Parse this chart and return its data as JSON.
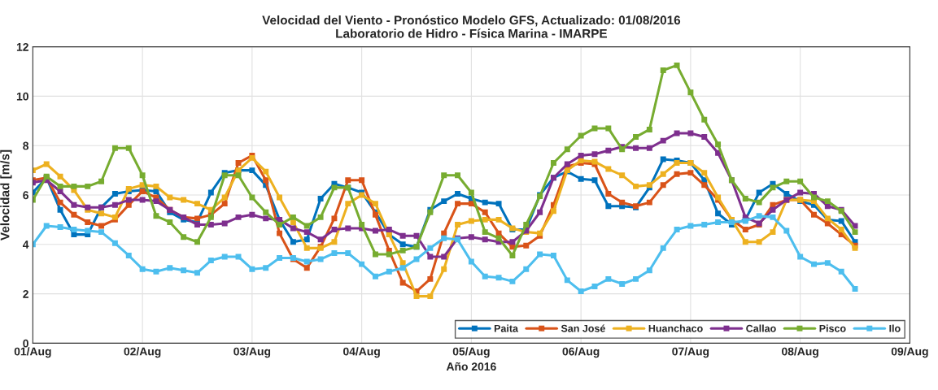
{
  "chart_data": {
    "type": "line",
    "title": "Velocidad del Viento - Pronóstico Modelo GFS, Actualizado: 01/08/2016",
    "subtitle": "Laboratorio de Hidro - Física Marina - IMARPE",
    "xlabel": "Año 2016",
    "ylabel": "Velocidad [m/s]",
    "x": [
      "2016-08-01T00:00",
      "2016-08-01T03:00",
      "2016-08-01T06:00",
      "2016-08-01T09:00",
      "2016-08-01T12:00",
      "2016-08-01T15:00",
      "2016-08-01T18:00",
      "2016-08-01T21:00",
      "2016-08-02T00:00",
      "2016-08-02T03:00",
      "2016-08-02T06:00",
      "2016-08-02T09:00",
      "2016-08-02T12:00",
      "2016-08-02T15:00",
      "2016-08-02T18:00",
      "2016-08-02T21:00",
      "2016-08-03T00:00",
      "2016-08-03T03:00",
      "2016-08-03T06:00",
      "2016-08-03T09:00",
      "2016-08-03T12:00",
      "2016-08-03T15:00",
      "2016-08-03T18:00",
      "2016-08-03T21:00",
      "2016-08-04T00:00",
      "2016-08-04T03:00",
      "2016-08-04T06:00",
      "2016-08-04T09:00",
      "2016-08-04T12:00",
      "2016-08-04T15:00",
      "2016-08-04T18:00",
      "2016-08-04T21:00",
      "2016-08-05T00:00",
      "2016-08-05T03:00",
      "2016-08-05T06:00",
      "2016-08-05T09:00",
      "2016-08-05T12:00",
      "2016-08-05T15:00",
      "2016-08-05T18:00",
      "2016-08-05T21:00",
      "2016-08-06T00:00",
      "2016-08-06T03:00",
      "2016-08-06T06:00",
      "2016-08-06T09:00",
      "2016-08-06T12:00",
      "2016-08-06T15:00",
      "2016-08-06T18:00",
      "2016-08-06T21:00",
      "2016-08-07T00:00",
      "2016-08-07T03:00",
      "2016-08-07T06:00",
      "2016-08-07T09:00",
      "2016-08-07T12:00",
      "2016-08-07T15:00",
      "2016-08-07T18:00",
      "2016-08-07T21:00",
      "2016-08-08T00:00",
      "2016-08-08T03:00",
      "2016-08-08T06:00",
      "2016-08-08T09:00",
      "2016-08-08T12:00"
    ],
    "series": [
      {
        "name": "Paita",
        "color": "#0072bd",
        "values": [
          6.1,
          6.7,
          5.4,
          4.4,
          4.4,
          5.5,
          6.05,
          6.15,
          6.2,
          6.15,
          5.3,
          5.0,
          4.9,
          6.1,
          6.9,
          7.0,
          7.0,
          6.4,
          5.0,
          4.1,
          4.2,
          5.85,
          6.45,
          6.3,
          6.1,
          5.3,
          4.4,
          4.0,
          3.9,
          5.4,
          5.75,
          6.05,
          5.85,
          5.7,
          5.65,
          4.6,
          4.6,
          6.0,
          6.7,
          6.95,
          6.65,
          6.6,
          5.55,
          5.55,
          5.5,
          6.3,
          7.45,
          7.4,
          7.3,
          6.6,
          5.25,
          4.8,
          5.0,
          6.1,
          6.45,
          6.05,
          5.75,
          5.6,
          5.0,
          4.95,
          4.1
        ]
      },
      {
        "name": "San José",
        "color": "#d95319",
        "values": [
          6.6,
          6.7,
          5.7,
          5.2,
          4.9,
          4.75,
          5.0,
          5.6,
          6.15,
          5.9,
          5.4,
          5.1,
          5.05,
          5.2,
          5.65,
          7.3,
          7.6,
          6.6,
          4.45,
          3.4,
          3.05,
          3.9,
          5.05,
          6.6,
          6.6,
          5.2,
          3.75,
          2.45,
          2.1,
          2.6,
          4.45,
          5.65,
          5.65,
          5.3,
          4.45,
          3.9,
          3.95,
          4.35,
          5.6,
          7.15,
          7.3,
          7.25,
          6.05,
          5.7,
          5.55,
          5.7,
          6.4,
          6.85,
          6.9,
          6.4,
          5.8,
          5.0,
          4.6,
          4.8,
          5.6,
          5.8,
          5.8,
          5.2,
          4.85,
          4.4,
          3.95
        ]
      },
      {
        "name": "Huanchaco",
        "color": "#edb120",
        "values": [
          7.0,
          7.25,
          6.75,
          6.2,
          5.4,
          5.25,
          5.1,
          6.25,
          6.4,
          6.35,
          5.9,
          5.8,
          5.65,
          5.4,
          5.9,
          7.0,
          7.5,
          6.95,
          5.9,
          4.9,
          3.85,
          3.85,
          4.1,
          5.65,
          6.0,
          5.65,
          4.4,
          3.25,
          1.9,
          1.9,
          3.0,
          4.8,
          4.95,
          5.0,
          5.0,
          4.65,
          4.5,
          4.45,
          5.35,
          7.0,
          7.4,
          7.35,
          7.05,
          6.8,
          6.35,
          6.4,
          6.85,
          7.3,
          7.3,
          6.9,
          5.9,
          5.0,
          4.1,
          4.1,
          4.5,
          5.8,
          5.8,
          5.75,
          5.05,
          4.6,
          3.85
        ]
      },
      {
        "name": "Callao",
        "color": "#7e2f8e",
        "values": [
          6.5,
          6.6,
          6.15,
          5.6,
          5.5,
          5.5,
          5.6,
          5.8,
          5.8,
          5.75,
          5.4,
          5.1,
          4.8,
          4.8,
          4.85,
          5.1,
          5.2,
          5.05,
          5.0,
          4.65,
          4.5,
          4.2,
          4.6,
          4.65,
          4.65,
          4.55,
          4.6,
          4.35,
          4.35,
          3.5,
          3.5,
          4.25,
          4.3,
          4.2,
          4.1,
          4.1,
          4.55,
          5.3,
          6.7,
          7.25,
          7.6,
          7.65,
          7.8,
          7.95,
          7.9,
          7.9,
          8.2,
          8.5,
          8.5,
          8.35,
          7.7,
          6.6,
          5.1,
          4.85,
          5.4,
          5.8,
          6.1,
          6.05,
          5.55,
          5.4,
          4.75
        ]
      },
      {
        "name": "Pisco",
        "color": "#77ac30",
        "values": [
          5.8,
          6.75,
          6.35,
          6.35,
          6.35,
          6.55,
          7.9,
          7.9,
          6.8,
          5.15,
          4.9,
          4.3,
          4.1,
          5.1,
          6.8,
          6.8,
          5.9,
          5.3,
          4.8,
          5.1,
          4.75,
          5.1,
          6.3,
          6.3,
          4.8,
          3.6,
          3.6,
          3.75,
          3.9,
          5.3,
          6.8,
          6.8,
          6.1,
          4.5,
          4.25,
          3.55,
          4.8,
          5.95,
          7.3,
          7.85,
          8.4,
          8.7,
          8.7,
          7.85,
          8.35,
          8.65,
          11.05,
          11.25,
          10.15,
          9.05,
          8.05,
          6.6,
          5.85,
          5.7,
          6.3,
          6.55,
          6.55,
          5.9,
          5.75,
          5.35,
          4.5
        ]
      },
      {
        "name": "Ilo",
        "color": "#4dbeee",
        "values": [
          4.0,
          4.75,
          4.7,
          4.6,
          4.55,
          4.5,
          4.05,
          3.55,
          3.0,
          2.9,
          3.05,
          2.95,
          2.85,
          3.35,
          3.5,
          3.5,
          3.0,
          3.05,
          3.45,
          3.45,
          3.3,
          3.4,
          3.65,
          3.65,
          3.2,
          2.7,
          2.9,
          3.05,
          3.4,
          3.85,
          4.25,
          4.2,
          3.3,
          2.7,
          2.65,
          2.5,
          3.0,
          3.6,
          3.55,
          2.55,
          2.1,
          2.3,
          2.6,
          2.4,
          2.6,
          2.95,
          3.85,
          4.6,
          4.75,
          4.8,
          4.9,
          4.9,
          4.95,
          5.15,
          5.1,
          4.55,
          3.5,
          3.2,
          3.25,
          2.9,
          2.2
        ]
      }
    ],
    "xlim": [
      "2016-08-01",
      "2016-08-09"
    ],
    "xticks": [
      {
        "value": "2016-08-01",
        "label": "01/Aug"
      },
      {
        "value": "2016-08-02",
        "label": "02/Aug"
      },
      {
        "value": "2016-08-03",
        "label": "03/Aug"
      },
      {
        "value": "2016-08-04",
        "label": "04/Aug"
      },
      {
        "value": "2016-08-05",
        "label": "05/Aug"
      },
      {
        "value": "2016-08-06",
        "label": "06/Aug"
      },
      {
        "value": "2016-08-07",
        "label": "07/Aug"
      },
      {
        "value": "2016-08-08",
        "label": "08/Aug"
      },
      {
        "value": "2016-08-09",
        "label": "09/Aug"
      }
    ],
    "ylim": [
      0,
      12
    ],
    "yticks": [
      0,
      2,
      4,
      6,
      8,
      10,
      12
    ],
    "grid": true,
    "legend": "bottom right",
    "marker": "square",
    "line_style": "solid"
  }
}
